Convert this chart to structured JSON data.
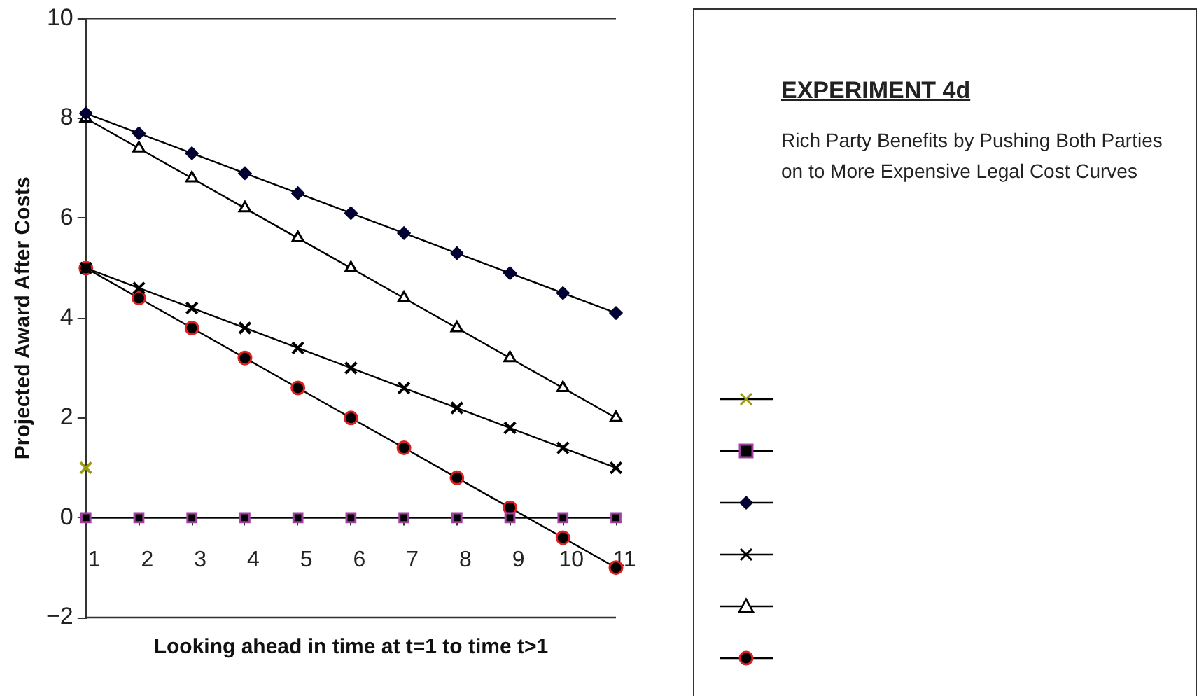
{
  "chart_data": {
    "type": "line",
    "xlabel": "Looking ahead in time at t=1 to time t>1",
    "ylabel": "Projected Award After Costs",
    "categories": [
      "1",
      "2",
      "3",
      "4",
      "5",
      "6",
      "7",
      "8",
      "9",
      "10",
      "11"
    ],
    "ylim": [
      -2,
      10
    ],
    "yticks": [
      {
        "value": -2,
        "label": "−2"
      },
      0,
      2,
      4,
      6,
      8,
      10
    ],
    "grid": false,
    "annotations": [
      "EXPERIMENT 4d",
      "Rich Party Benefits by Pushing Both Parties on to More Expensive Legal Cost Curves"
    ],
    "series": [
      {
        "type": "scatter",
        "color": "#9a9a10",
        "marker": "cross",
        "x": [
          "1"
        ],
        "values": [
          1
        ]
      },
      {
        "color": "#a040a0",
        "marker": "square",
        "values": [
          0,
          0,
          0,
          0,
          0,
          0,
          0,
          0,
          0,
          0,
          0
        ]
      },
      {
        "color": "#000033",
        "marker": "diamond",
        "values": [
          8.1,
          7.7,
          7.3,
          6.9,
          6.5,
          6.1,
          5.7,
          5.3,
          4.9,
          4.5,
          4.1
        ]
      },
      {
        "color": "#000000",
        "marker": "cross",
        "values": [
          5,
          4.6,
          4.2,
          3.8,
          3.4,
          3,
          2.6,
          2.2,
          1.8,
          1.4,
          1
        ]
      },
      {
        "color": "#000000",
        "marker": "triangle",
        "values": [
          8,
          7.4,
          6.8,
          6.2,
          5.6,
          5,
          4.4,
          3.8,
          3.2,
          2.6,
          2
        ]
      },
      {
        "color": "#e02020",
        "marker": "circle",
        "values": [
          5,
          4.4,
          3.8,
          3.2,
          2.6,
          2,
          1.4,
          0.8,
          0.2,
          -0.4,
          -1
        ]
      }
    ]
  }
}
